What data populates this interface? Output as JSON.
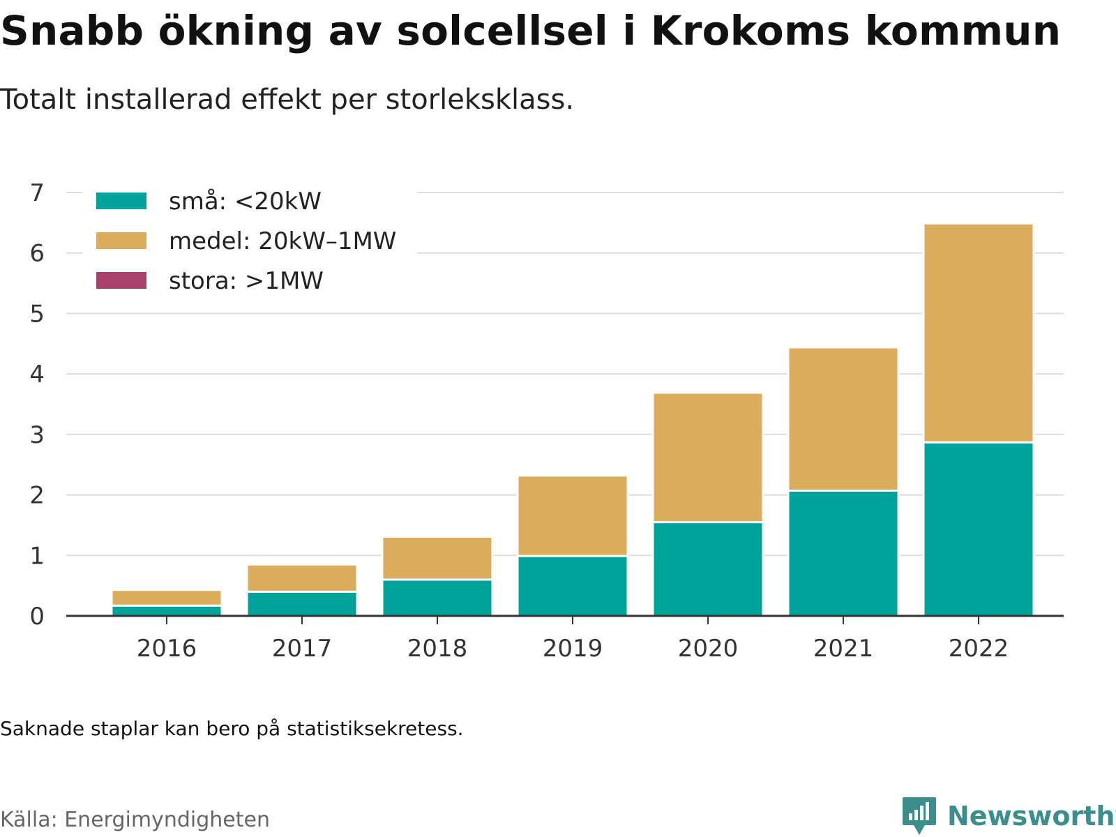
{
  "title": "Snabb ökning av solcellsel i Krokoms kommun",
  "subtitle": "Totalt installerad effekt per storleksklass.",
  "note": "Saknade staplar kan bero på statistiksekretess.",
  "source": "Källa: Energimyndigheten",
  "brand": {
    "name": "Newsworthy",
    "icon": "newsworthy-chart-bubble-icon",
    "color": "#3b8e8c"
  },
  "chart_data": {
    "type": "bar",
    "stacked": true,
    "categories": [
      "2016",
      "2017",
      "2018",
      "2019",
      "2020",
      "2021",
      "2022"
    ],
    "series": [
      {
        "name": "små: <20kW",
        "color": "#00a39a",
        "values": [
          0.17,
          0.4,
          0.6,
          0.99,
          1.55,
          2.07,
          2.87
        ]
      },
      {
        "name": "medel: 20kW–1MW",
        "color": "#dbac5c",
        "values": [
          0.26,
          0.45,
          0.71,
          1.33,
          2.14,
          2.37,
          3.62
        ]
      },
      {
        "name": "stora: >1MW",
        "color": "#a8426c",
        "values": [
          0,
          0,
          0,
          0,
          0,
          0,
          0
        ]
      }
    ],
    "yticks": [
      0,
      1,
      2,
      3,
      4,
      5,
      6,
      7
    ],
    "ylim": [
      0,
      7
    ],
    "grid": true,
    "legend_position": "top-left"
  }
}
